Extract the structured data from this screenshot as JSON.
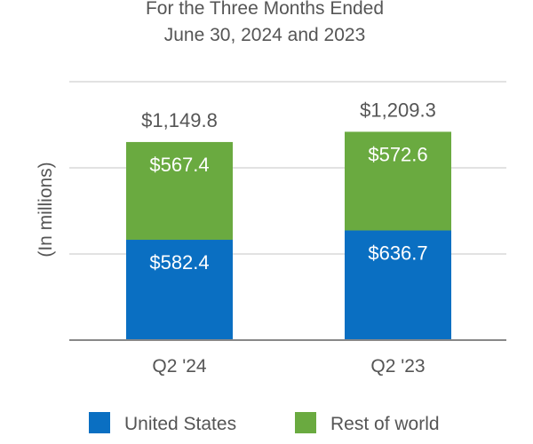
{
  "chart_data": {
    "type": "bar",
    "stacked": true,
    "title": "For the Three Months Ended",
    "subtitle": "June 30, 2024 and 2023",
    "ylabel": "(In millions)",
    "xlabel": "",
    "categories": [
      "Q2 '24",
      "Q2 '23"
    ],
    "series": [
      {
        "name": "United States",
        "values": [
          582.4,
          636.7
        ],
        "labels": [
          "$582.4",
          "$636.7"
        ],
        "color": "#0a6fc2"
      },
      {
        "name": "Rest of world",
        "values": [
          567.4,
          572.6
        ],
        "labels": [
          "$567.4",
          "$572.6"
        ],
        "color": "#6aaa40"
      }
    ],
    "totals": [
      1149.8,
      1209.3
    ],
    "total_labels": [
      "$1,149.8",
      "$1,209.3"
    ],
    "ylim": [
      0,
      1500
    ],
    "grid": true,
    "legend": "bottom"
  }
}
